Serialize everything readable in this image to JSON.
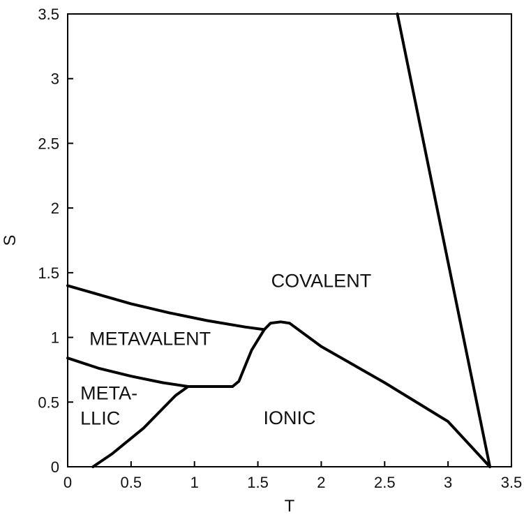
{
  "chart_data": {
    "type": "line",
    "xlabel": "T",
    "ylabel": "S",
    "xlim": [
      0,
      3.5
    ],
    "ylim": [
      0,
      3.5
    ],
    "grid": false,
    "x_ticks": [
      "0",
      "0.5",
      "1",
      "1.5",
      "2",
      "2.5",
      "3",
      "3.5"
    ],
    "y_ticks": [
      "0",
      "0.5",
      "1",
      "1.5",
      "2",
      "2.5",
      "3",
      "3.5"
    ],
    "series": [
      {
        "x": [
          0,
          0.25,
          0.5,
          0.8,
          1.1,
          1.4,
          1.55
        ],
        "y": [
          1.4,
          1.33,
          1.26,
          1.19,
          1.13,
          1.08,
          1.06
        ]
      },
      {
        "x": [
          0,
          0.25,
          0.5,
          0.75,
          0.95,
          1.3
        ],
        "y": [
          0.84,
          0.76,
          0.7,
          0.65,
          0.62,
          0.62
        ]
      },
      {
        "x": [
          0.2,
          0.35,
          0.6,
          0.85,
          0.95,
          1.3,
          1.35,
          1.45,
          1.55,
          1.6,
          1.68,
          1.75,
          2.0,
          2.5,
          3.0,
          3.33
        ],
        "y": [
          0.0,
          0.1,
          0.3,
          0.55,
          0.62,
          0.62,
          0.66,
          0.9,
          1.06,
          1.11,
          1.12,
          1.11,
          0.93,
          0.65,
          0.35,
          0.0
        ]
      },
      {
        "x": [
          2.6,
          3.33
        ],
        "y": [
          3.5,
          0.0
        ]
      }
    ],
    "annotations": [
      {
        "text": "COVALENT",
        "x": 2.0,
        "y": 1.39,
        "lines": [
          "COVALENT"
        ]
      },
      {
        "text": "METAVALENT",
        "x": 0.65,
        "y": 0.94,
        "lines": [
          "METAVALENT"
        ]
      },
      {
        "text": "META- LLIC",
        "x": 0.1,
        "y": 0.52,
        "lines": [
          "META-",
          "LLIC"
        ]
      },
      {
        "text": "IONIC",
        "x": 1.75,
        "y": 0.33,
        "lines": [
          "IONIC"
        ]
      }
    ]
  }
}
